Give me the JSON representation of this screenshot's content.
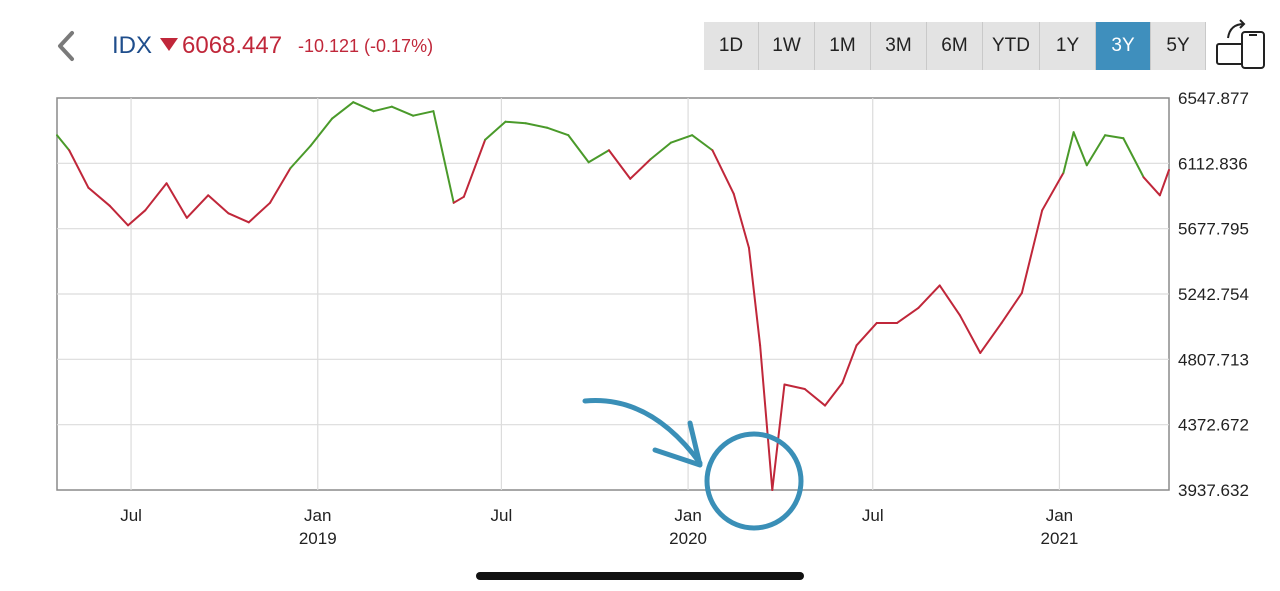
{
  "header": {
    "ticker": "IDX",
    "price": "6068.447",
    "change": "-10.121 (-0.17%)",
    "direction": "down",
    "down_color": "#c0273a",
    "up_color": "#4a9a2a"
  },
  "ranges": {
    "items": [
      "1D",
      "1W",
      "1M",
      "3M",
      "6M",
      "YTD",
      "1Y",
      "3Y",
      "5Y"
    ],
    "active": "3Y"
  },
  "icons": {
    "back": "chevron-left-icon",
    "rotate": "rotate-device-icon"
  },
  "chart_data": {
    "type": "line",
    "title": "",
    "xlabel": "",
    "ylabel": "",
    "y_axis_side": "right",
    "grid": true,
    "ylim": [
      3937.632,
      6547.877
    ],
    "y_ticks": [
      "6547.877",
      "6112.836",
      "5677.795",
      "5242.754",
      "4807.713",
      "4372.672",
      "3937.632"
    ],
    "x_ticks": [
      {
        "date": "2018-07-01",
        "label": "Jul",
        "year": ""
      },
      {
        "date": "2019-01-01",
        "label": "Jan",
        "year": "2019"
      },
      {
        "date": "2019-07-01",
        "label": "Jul",
        "year": ""
      },
      {
        "date": "2020-01-01",
        "label": "Jan",
        "year": "2020"
      },
      {
        "date": "2020-07-01",
        "label": "Jul",
        "year": ""
      },
      {
        "date": "2021-01-01",
        "label": "Jan",
        "year": "2021"
      }
    ],
    "xlim": [
      "2018-04-19",
      "2021-04-19"
    ],
    "reference_value": 6112.836,
    "above_color": "#4a9a2a",
    "below_color": "#c0273a",
    "series": [
      {
        "x": [
          "2018-04-19",
          "2018-05-01",
          "2018-05-20",
          "2018-06-10",
          "2018-06-28",
          "2018-07-15",
          "2018-08-05",
          "2018-08-25",
          "2018-09-15",
          "2018-10-05",
          "2018-10-25",
          "2018-11-15",
          "2018-12-05",
          "2018-12-25",
          "2019-01-15",
          "2019-02-05",
          "2019-02-25",
          "2019-03-15",
          "2019-04-05",
          "2019-04-25",
          "2019-05-15",
          "2019-05-25",
          "2019-06-15",
          "2019-07-05",
          "2019-07-25",
          "2019-08-15",
          "2019-09-05",
          "2019-09-25",
          "2019-10-15",
          "2019-11-05",
          "2019-11-25",
          "2019-12-15",
          "2020-01-05",
          "2020-01-25",
          "2020-02-15",
          "2020-03-01",
          "2020-03-12",
          "2020-03-24",
          "2020-04-05",
          "2020-04-25",
          "2020-05-15",
          "2020-06-01",
          "2020-06-15",
          "2020-07-05",
          "2020-07-25",
          "2020-08-15",
          "2020-09-05",
          "2020-09-25",
          "2020-10-15",
          "2020-11-05",
          "2020-11-25",
          "2020-12-15",
          "2021-01-05",
          "2021-01-15",
          "2021-01-28",
          "2021-02-15",
          "2021-03-05",
          "2021-03-25",
          "2021-04-10",
          "2021-04-19"
        ],
        "y": [
          6300,
          6200,
          5950,
          5830,
          5700,
          5800,
          5980,
          5750,
          5900,
          5780,
          5720,
          5850,
          6080,
          6230,
          6410,
          6520,
          6460,
          6490,
          6430,
          6460,
          5850,
          5890,
          6270,
          6390,
          6380,
          6350,
          6300,
          6120,
          6200,
          6010,
          6140,
          6250,
          6300,
          6200,
          5910,
          5550,
          4900,
          3937.6,
          4640,
          4610,
          4500,
          4650,
          4900,
          5050,
          5050,
          5150,
          5300,
          5100,
          4850,
          5050,
          5250,
          5800,
          6050,
          6320,
          6100,
          6300,
          6280,
          6020,
          5900,
          6068.447
        ]
      }
    ],
    "annotation": {
      "type": "circle-and-arrow",
      "target_date": "2020-03-24",
      "color": "#3a8fb7"
    }
  }
}
